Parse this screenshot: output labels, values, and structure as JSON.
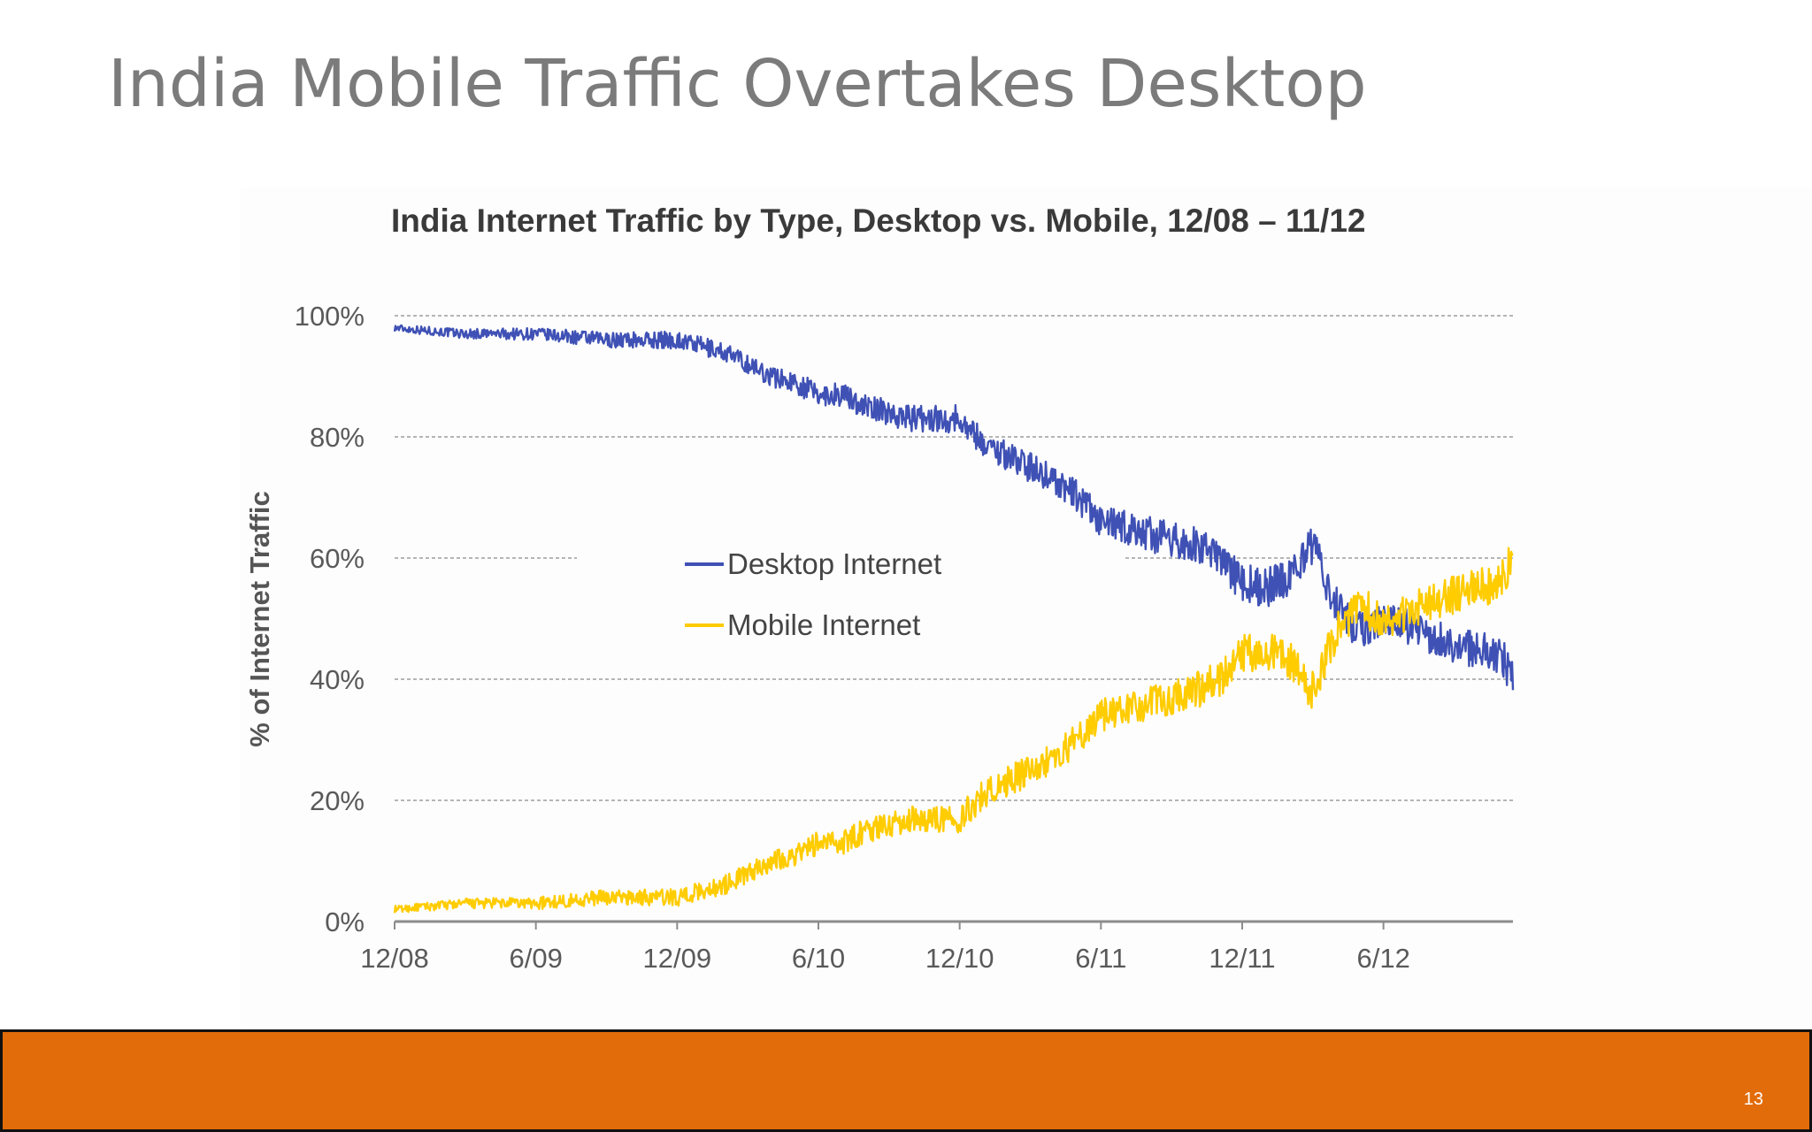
{
  "slide": {
    "title": "India Mobile Traffic Overtakes Desktop",
    "page_number": "13"
  },
  "colors": {
    "desktop": "#3f51b5",
    "mobile": "#ffcc00",
    "footer": "#e26b0a"
  },
  "chart_data": {
    "type": "line",
    "title": "India Internet Traffic by Type, Desktop vs. Mobile, 12/08 – 11/12",
    "xlabel": "",
    "ylabel": "% of Internet Traffic",
    "ylim": [
      0,
      100
    ],
    "yticks": [
      0,
      20,
      40,
      60,
      80,
      100
    ],
    "ytick_labels": [
      "0%",
      "20%",
      "40%",
      "60%",
      "80%",
      "100%"
    ],
    "xlim": [
      0,
      47.5
    ],
    "xticks": [
      0,
      6,
      12,
      18,
      24,
      30,
      36,
      42
    ],
    "xtick_labels": [
      "12/08",
      "6/09",
      "12/09",
      "6/10",
      "12/10",
      "6/11",
      "12/11",
      "6/12"
    ],
    "x_unit": "months since 12/08",
    "grid": true,
    "legend_position": "center",
    "series": [
      {
        "name": "Desktop Internet",
        "x": [
          0,
          3,
          6,
          9,
          11,
          12,
          14,
          15,
          16,
          17,
          18,
          19,
          20,
          21,
          22,
          23,
          24,
          25,
          26,
          27,
          28,
          29,
          30,
          31,
          32,
          33,
          34,
          35,
          36,
          37,
          38,
          39,
          40,
          41,
          42,
          43,
          44,
          45,
          46,
          47,
          47.5
        ],
        "values": [
          98,
          97,
          97,
          96,
          96,
          96,
          94,
          92,
          90,
          89,
          87,
          87,
          85,
          84,
          83,
          83,
          83,
          79,
          77,
          75,
          73,
          70,
          66,
          65,
          64,
          63,
          62,
          60,
          56,
          55,
          57,
          62,
          52,
          48,
          50,
          49,
          47,
          46,
          45,
          44,
          40
        ]
      },
      {
        "name": "Mobile Internet",
        "x": [
          0,
          3,
          6,
          9,
          11,
          12,
          14,
          15,
          16,
          17,
          18,
          19,
          20,
          21,
          22,
          23,
          24,
          25,
          26,
          27,
          28,
          29,
          30,
          31,
          32,
          33,
          34,
          35,
          36,
          37,
          38,
          39,
          40,
          41,
          42,
          43,
          44,
          45,
          46,
          47,
          47.5
        ],
        "values": [
          2,
          3,
          3,
          4,
          4,
          4,
          6,
          8,
          10,
          11,
          13,
          13,
          15,
          16,
          17,
          17,
          17,
          21,
          23,
          25,
          27,
          30,
          34,
          35,
          36,
          37,
          38,
          40,
          44,
          45,
          43,
          38,
          48,
          52,
          50,
          51,
          53,
          54,
          55,
          56,
          60
        ]
      }
    ]
  }
}
